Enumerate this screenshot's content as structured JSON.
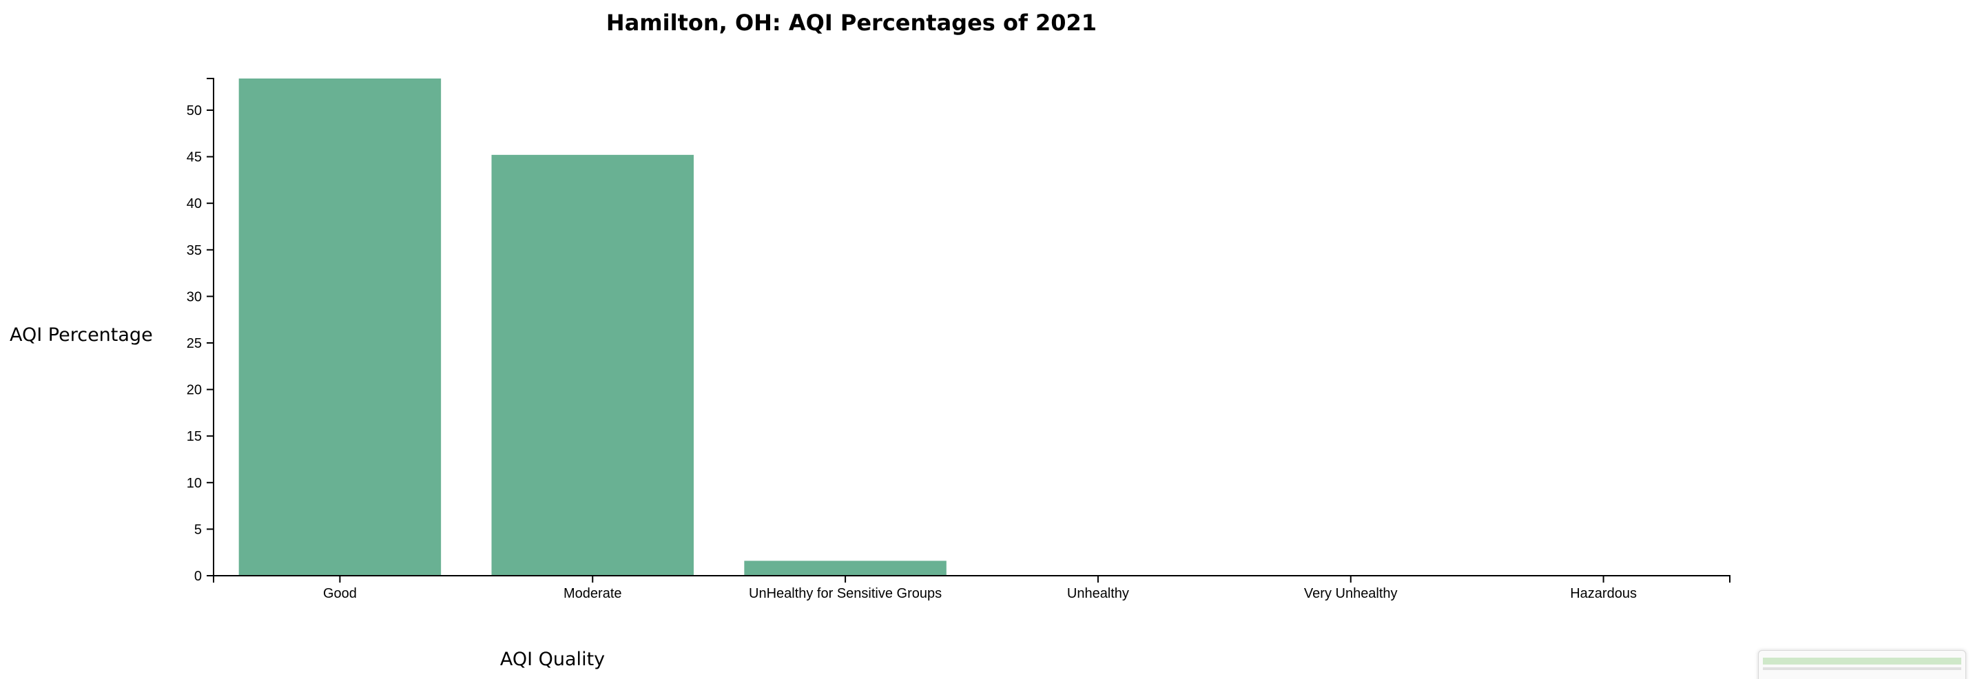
{
  "chart_data": {
    "type": "bar",
    "title": "Hamilton, OH: AQI Percentages of 2021",
    "xlabel": "AQI Quality",
    "ylabel": "AQI Percentage",
    "categories": [
      "Good",
      "Moderate",
      "UnHealthy for Sensitive Groups",
      "Unhealthy",
      "Very Unhealthy",
      "Hazardous"
    ],
    "values": [
      53.4,
      45.2,
      1.6,
      0,
      0,
      0
    ],
    "ylim": [
      0,
      53.4
    ],
    "yticks": [
      0,
      5,
      10,
      15,
      20,
      25,
      30,
      35,
      40,
      45,
      50
    ],
    "bar_color": "#69b193",
    "grid": false,
    "legend": "none"
  }
}
